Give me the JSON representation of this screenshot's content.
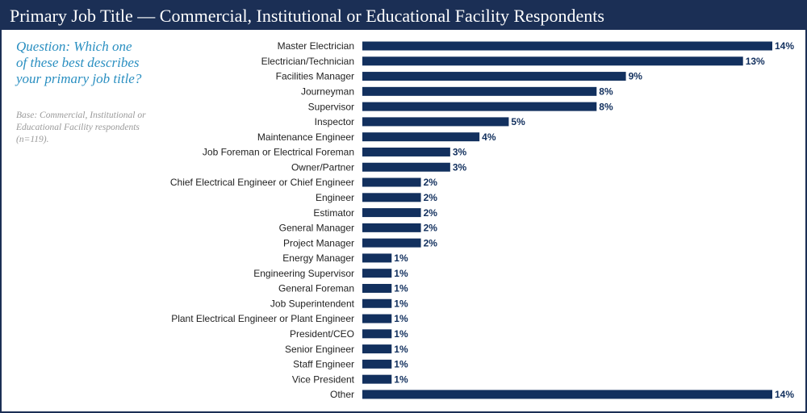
{
  "chart_data": {
    "type": "bar",
    "orientation": "horizontal",
    "title": "Primary Job Title — Commercial, Institutional or Educational Facility Respondents",
    "question": "Question: Which one of these best describes your primary job title?",
    "note": "Base: Commercial, Institutional or Educational Facility respondents (n=119).",
    "categories": [
      "Master Electrician",
      "Electrician/Technician",
      "Facilities Manager",
      "Journeyman",
      "Supervisor",
      "Inspector",
      "Maintenance Engineer",
      "Job Foreman or Electrical Foreman",
      "Owner/Partner",
      "Chief Electrical Engineer or Chief Engineer",
      "Engineer",
      "Estimator",
      "General Manager",
      "Project Manager",
      "Energy Manager",
      "Engineering Supervisor",
      "General Foreman",
      "Job Superintendent",
      "Plant Electrical Engineer or Plant Engineer",
      "President/CEO",
      "Senior Engineer",
      "Staff Engineer",
      "Vice President",
      "Other"
    ],
    "values": [
      14,
      13,
      9,
      8,
      8,
      5,
      4,
      3,
      3,
      2,
      2,
      2,
      2,
      2,
      1,
      1,
      1,
      1,
      1,
      1,
      1,
      1,
      1,
      14
    ],
    "value_labels": [
      "14%",
      "13%",
      "9%",
      "8%",
      "8%",
      "5%",
      "4%",
      "3%",
      "3%",
      "2%",
      "2%",
      "2%",
      "2%",
      "2%",
      "1%",
      "1%",
      "1%",
      "1%",
      "1%",
      "1%",
      "1%",
      "1%",
      "1%",
      "14%"
    ],
    "color": "#12305e"
  }
}
